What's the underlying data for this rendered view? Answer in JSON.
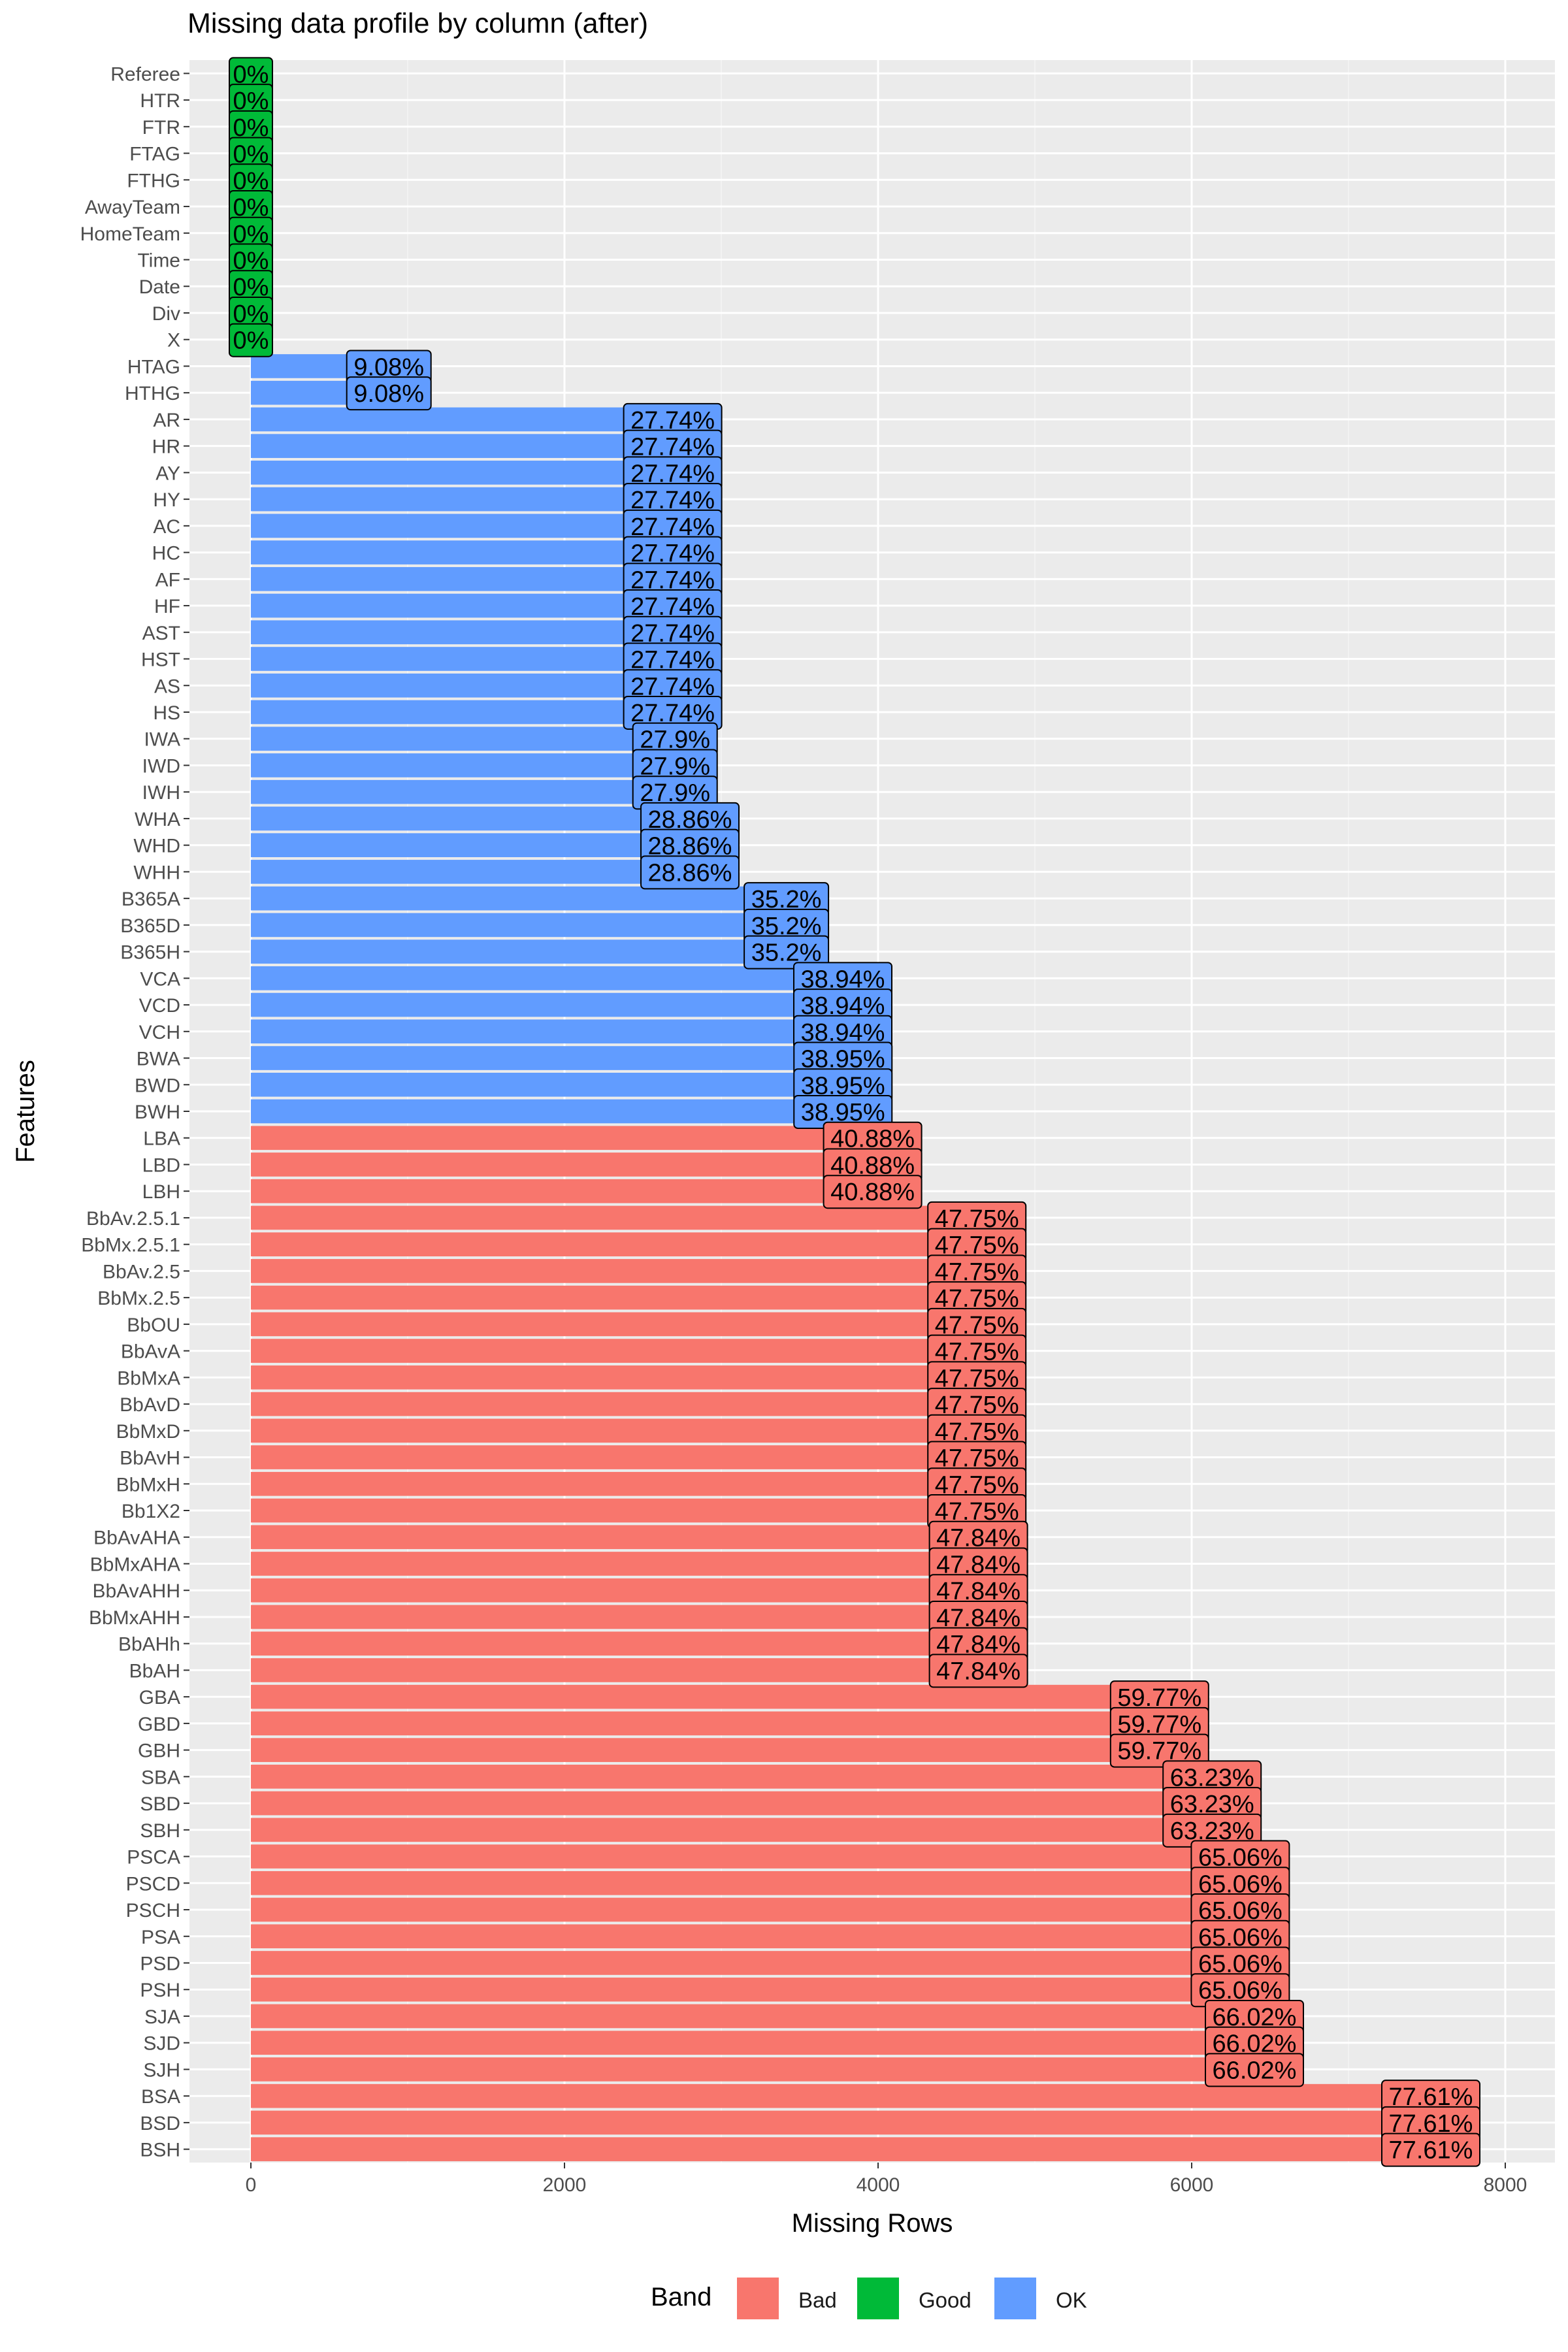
{
  "title": "Missing data profile by column (after)",
  "chart_data": {
    "type": "bar",
    "orientation": "horizontal",
    "title": "Missing data profile by column (after)",
    "xlabel": "Missing Rows",
    "ylabel": "Features",
    "xlim": [
      0,
      8300
    ],
    "x_ticks": [
      "0",
      "2000",
      "4000",
      "6000",
      "8000"
    ],
    "x_tick_values": [
      0,
      2000,
      4000,
      6000,
      8000
    ],
    "grid": true,
    "legend": {
      "title": "Band",
      "placement": "bottom",
      "items": [
        {
          "label": "Bad",
          "color": "#F8766D"
        },
        {
          "label": "Good",
          "color": "#00BA38"
        },
        {
          "label": "OK",
          "color": "#619CFF"
        }
      ]
    },
    "colors": {
      "Bad": "#F8766D",
      "Good": "#00BA38",
      "OK": "#619CFF"
    },
    "bars": [
      {
        "feature": "Referee",
        "value": 0,
        "label": "0%",
        "band": "Good"
      },
      {
        "feature": "HTR",
        "value": 0,
        "label": "0%",
        "band": "Good"
      },
      {
        "feature": "FTR",
        "value": 0,
        "label": "0%",
        "band": "Good"
      },
      {
        "feature": "FTAG",
        "value": 0,
        "label": "0%",
        "band": "Good"
      },
      {
        "feature": "FTHG",
        "value": 0,
        "label": "0%",
        "band": "Good"
      },
      {
        "feature": "AwayTeam",
        "value": 0,
        "label": "0%",
        "band": "Good"
      },
      {
        "feature": "HomeTeam",
        "value": 0,
        "label": "0%",
        "band": "Good"
      },
      {
        "feature": "Time",
        "value": 0,
        "label": "0%",
        "band": "Good"
      },
      {
        "feature": "Date",
        "value": 0,
        "label": "0%",
        "band": "Good"
      },
      {
        "feature": "Div",
        "value": 0,
        "label": "0%",
        "band": "Good"
      },
      {
        "feature": "X",
        "value": 0,
        "label": "0%",
        "band": "Good"
      },
      {
        "feature": "HTAG",
        "value": 880,
        "label": "9.08%",
        "band": "OK"
      },
      {
        "feature": "HTHG",
        "value": 880,
        "label": "9.08%",
        "band": "OK"
      },
      {
        "feature": "AR",
        "value": 2690,
        "label": "27.74%",
        "band": "OK"
      },
      {
        "feature": "HR",
        "value": 2690,
        "label": "27.74%",
        "band": "OK"
      },
      {
        "feature": "AY",
        "value": 2690,
        "label": "27.74%",
        "band": "OK"
      },
      {
        "feature": "HY",
        "value": 2690,
        "label": "27.74%",
        "band": "OK"
      },
      {
        "feature": "AC",
        "value": 2690,
        "label": "27.74%",
        "band": "OK"
      },
      {
        "feature": "HC",
        "value": 2690,
        "label": "27.74%",
        "band": "OK"
      },
      {
        "feature": "AF",
        "value": 2690,
        "label": "27.74%",
        "band": "OK"
      },
      {
        "feature": "HF",
        "value": 2690,
        "label": "27.74%",
        "band": "OK"
      },
      {
        "feature": "AST",
        "value": 2690,
        "label": "27.74%",
        "band": "OK"
      },
      {
        "feature": "HST",
        "value": 2690,
        "label": "27.74%",
        "band": "OK"
      },
      {
        "feature": "AS",
        "value": 2690,
        "label": "27.74%",
        "band": "OK"
      },
      {
        "feature": "HS",
        "value": 2690,
        "label": "27.74%",
        "band": "OK"
      },
      {
        "feature": "IWA",
        "value": 2705,
        "label": "27.9%",
        "band": "OK"
      },
      {
        "feature": "IWD",
        "value": 2705,
        "label": "27.9%",
        "band": "OK"
      },
      {
        "feature": "IWH",
        "value": 2705,
        "label": "27.9%",
        "band": "OK"
      },
      {
        "feature": "WHA",
        "value": 2800,
        "label": "28.86%",
        "band": "OK"
      },
      {
        "feature": "WHD",
        "value": 2800,
        "label": "28.86%",
        "band": "OK"
      },
      {
        "feature": "WHH",
        "value": 2800,
        "label": "28.86%",
        "band": "OK"
      },
      {
        "feature": "B365A",
        "value": 3415,
        "label": "35.2%",
        "band": "OK"
      },
      {
        "feature": "B365D",
        "value": 3415,
        "label": "35.2%",
        "band": "OK"
      },
      {
        "feature": "B365H",
        "value": 3415,
        "label": "35.2%",
        "band": "OK"
      },
      {
        "feature": "VCA",
        "value": 3775,
        "label": "38.94%",
        "band": "OK"
      },
      {
        "feature": "VCD",
        "value": 3775,
        "label": "38.94%",
        "band": "OK"
      },
      {
        "feature": "VCH",
        "value": 3775,
        "label": "38.94%",
        "band": "OK"
      },
      {
        "feature": "BWA",
        "value": 3776,
        "label": "38.95%",
        "band": "OK"
      },
      {
        "feature": "BWD",
        "value": 3776,
        "label": "38.95%",
        "band": "OK"
      },
      {
        "feature": "BWH",
        "value": 3776,
        "label": "38.95%",
        "band": "OK"
      },
      {
        "feature": "LBA",
        "value": 3965,
        "label": "40.88%",
        "band": "Bad"
      },
      {
        "feature": "LBD",
        "value": 3965,
        "label": "40.88%",
        "band": "Bad"
      },
      {
        "feature": "LBH",
        "value": 3965,
        "label": "40.88%",
        "band": "Bad"
      },
      {
        "feature": "BbAv.2.5.1",
        "value": 4630,
        "label": "47.75%",
        "band": "Bad"
      },
      {
        "feature": "BbMx.2.5.1",
        "value": 4630,
        "label": "47.75%",
        "band": "Bad"
      },
      {
        "feature": "BbAv.2.5",
        "value": 4630,
        "label": "47.75%",
        "band": "Bad"
      },
      {
        "feature": "BbMx.2.5",
        "value": 4630,
        "label": "47.75%",
        "band": "Bad"
      },
      {
        "feature": "BbOU",
        "value": 4630,
        "label": "47.75%",
        "band": "Bad"
      },
      {
        "feature": "BbAvA",
        "value": 4630,
        "label": "47.75%",
        "band": "Bad"
      },
      {
        "feature": "BbMxA",
        "value": 4630,
        "label": "47.75%",
        "band": "Bad"
      },
      {
        "feature": "BbAvD",
        "value": 4630,
        "label": "47.75%",
        "band": "Bad"
      },
      {
        "feature": "BbMxD",
        "value": 4630,
        "label": "47.75%",
        "band": "Bad"
      },
      {
        "feature": "BbAvH",
        "value": 4630,
        "label": "47.75%",
        "band": "Bad"
      },
      {
        "feature": "BbMxH",
        "value": 4630,
        "label": "47.75%",
        "band": "Bad"
      },
      {
        "feature": "Bb1X2",
        "value": 4630,
        "label": "47.75%",
        "band": "Bad"
      },
      {
        "feature": "BbAvAHA",
        "value": 4640,
        "label": "47.84%",
        "band": "Bad"
      },
      {
        "feature": "BbMxAHA",
        "value": 4640,
        "label": "47.84%",
        "band": "Bad"
      },
      {
        "feature": "BbAvAHH",
        "value": 4640,
        "label": "47.84%",
        "band": "Bad"
      },
      {
        "feature": "BbMxAHH",
        "value": 4640,
        "label": "47.84%",
        "band": "Bad"
      },
      {
        "feature": "BbAHh",
        "value": 4640,
        "label": "47.84%",
        "band": "Bad"
      },
      {
        "feature": "BbAH",
        "value": 4640,
        "label": "47.84%",
        "band": "Bad"
      },
      {
        "feature": "GBA",
        "value": 5795,
        "label": "59.77%",
        "band": "Bad"
      },
      {
        "feature": "GBD",
        "value": 5795,
        "label": "59.77%",
        "band": "Bad"
      },
      {
        "feature": "GBH",
        "value": 5795,
        "label": "59.77%",
        "band": "Bad"
      },
      {
        "feature": "SBA",
        "value": 6130,
        "label": "63.23%",
        "band": "Bad"
      },
      {
        "feature": "SBD",
        "value": 6130,
        "label": "63.23%",
        "band": "Bad"
      },
      {
        "feature": "SBH",
        "value": 6130,
        "label": "63.23%",
        "band": "Bad"
      },
      {
        "feature": "PSCA",
        "value": 6310,
        "label": "65.06%",
        "band": "Bad"
      },
      {
        "feature": "PSCD",
        "value": 6310,
        "label": "65.06%",
        "band": "Bad"
      },
      {
        "feature": "PSCH",
        "value": 6310,
        "label": "65.06%",
        "band": "Bad"
      },
      {
        "feature": "PSA",
        "value": 6310,
        "label": "65.06%",
        "band": "Bad"
      },
      {
        "feature": "PSD",
        "value": 6310,
        "label": "65.06%",
        "band": "Bad"
      },
      {
        "feature": "PSH",
        "value": 6310,
        "label": "65.06%",
        "band": "Bad"
      },
      {
        "feature": "SJA",
        "value": 6400,
        "label": "66.02%",
        "band": "Bad"
      },
      {
        "feature": "SJD",
        "value": 6400,
        "label": "66.02%",
        "band": "Bad"
      },
      {
        "feature": "SJH",
        "value": 6400,
        "label": "66.02%",
        "band": "Bad"
      },
      {
        "feature": "BSA",
        "value": 7525,
        "label": "77.61%",
        "band": "Bad"
      },
      {
        "feature": "BSD",
        "value": 7525,
        "label": "77.61%",
        "band": "Bad"
      },
      {
        "feature": "BSH",
        "value": 7525,
        "label": "77.61%",
        "band": "Bad"
      }
    ]
  }
}
